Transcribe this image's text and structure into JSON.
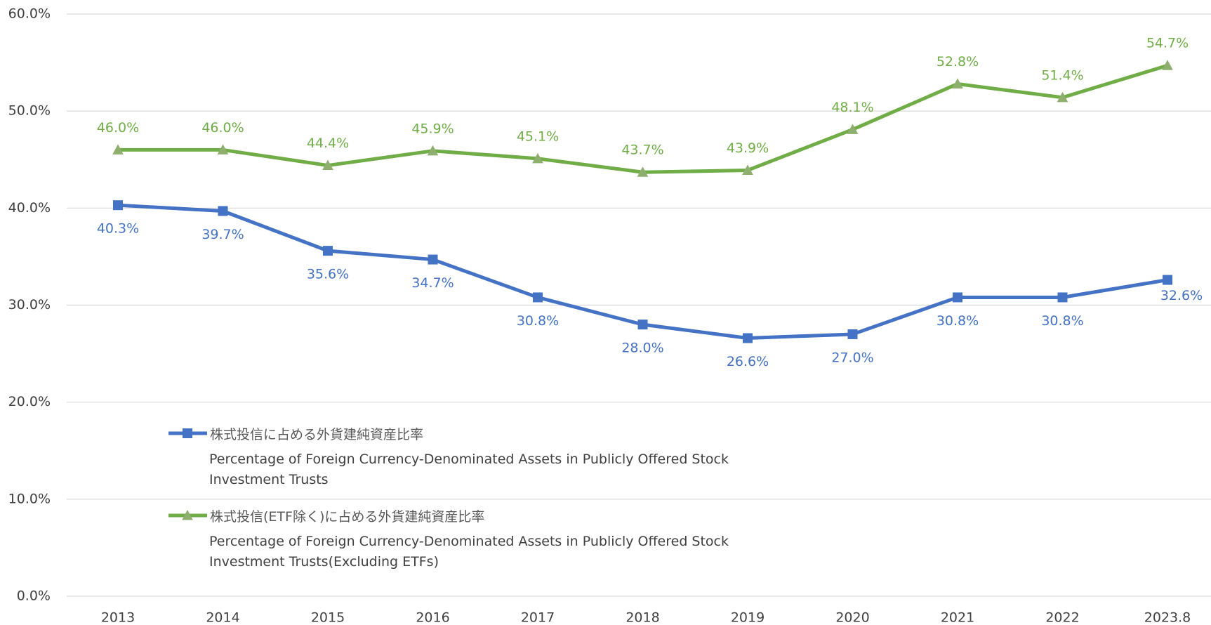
{
  "chart_data": {
    "type": "line",
    "categories": [
      "2013",
      "2014",
      "2015",
      "2016",
      "2017",
      "2018",
      "2019",
      "2020",
      "2021",
      "2022",
      "2023.8"
    ],
    "series": [
      {
        "name": "株式投信に占める外貨建純資産比率",
        "name_en": " Percentage of Foreign Currency-Denominated Assets in Publicly Offered Stock Investment Trusts",
        "color": "#4472c4",
        "marker": "square",
        "values": [
          40.3,
          39.7,
          35.6,
          34.7,
          30.8,
          28.0,
          26.6,
          27.0,
          30.8,
          30.8,
          32.6
        ],
        "value_labels": [
          "40.3%",
          "39.7%",
          "35.6%",
          "34.7%",
          "30.8%",
          "28.0%",
          "26.6%",
          "27.0%",
          "30.8%",
          "30.8%",
          "32.6%"
        ]
      },
      {
        "name": "株式投信(ETF除く)に占める外貨建純資産比率",
        "name_en": "Percentage of Foreign Currency-Denominated Assets in Publicly Offered Stock Investment Trusts(Excluding ETFs)",
        "color": "#70ad47",
        "marker": "triangle",
        "values": [
          46.0,
          46.0,
          44.4,
          45.9,
          45.1,
          43.7,
          43.9,
          48.1,
          52.8,
          51.4,
          54.7
        ],
        "value_labels": [
          "46.0%",
          "46.0%",
          "44.4%",
          "45.9%",
          "45.1%",
          "43.7%",
          "43.9%",
          "48.1%",
          "52.8%",
          "51.4%",
          "54.7%"
        ]
      }
    ],
    "ylim": [
      0,
      60
    ],
    "yticks": [
      {
        "value": 0,
        "label": "0.0%"
      },
      {
        "value": 10,
        "label": "10.0%"
      },
      {
        "value": 20,
        "label": "20.0%"
      },
      {
        "value": 30,
        "label": "30.0%"
      },
      {
        "value": 40,
        "label": "40.0%"
      },
      {
        "value": 50,
        "label": "50.0%"
      },
      {
        "value": 60,
        "label": "60.0%"
      }
    ],
    "grid": true
  }
}
